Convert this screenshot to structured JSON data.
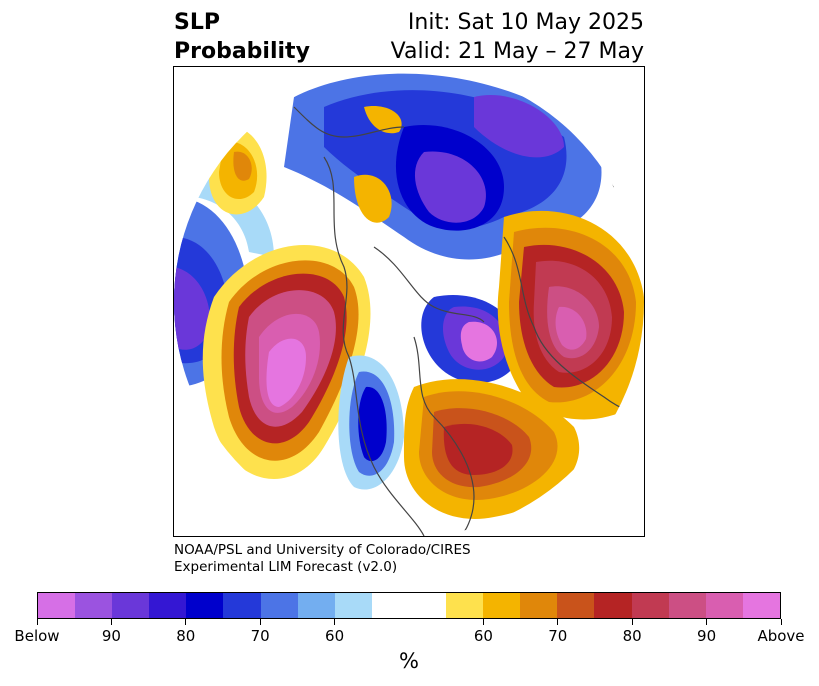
{
  "header": {
    "variable": "SLP",
    "product": "Probability",
    "init": "Init: Sat 10 May 2025",
    "valid": "Valid: 21 May – 27 May"
  },
  "credit": {
    "line1": "NOAA/PSL and University of Colorado/CIRES",
    "line2": "Experimental LIM Forecast (v2.0)"
  },
  "colorbar": {
    "colors": [
      "#d66fe6",
      "#9b53e0",
      "#6a37d9",
      "#3417d3",
      "#0000cc",
      "#2439d9",
      "#4c74e6",
      "#73aef0",
      "#a8daf8",
      "#ffffff",
      "#ffffff",
      "#fee14d",
      "#f4b400",
      "#e0870a",
      "#c9531b",
      "#b52424",
      "#c13a52",
      "#cc4f84",
      "#d95eb0",
      "#e575e0"
    ],
    "tick_labels": [
      "Below",
      "90",
      "80",
      "70",
      "60",
      "60",
      "70",
      "80",
      "90",
      "Above"
    ],
    "unit": "%"
  },
  "map": {
    "projection": "north polar stereographic",
    "field": "sea level pressure tercile probability"
  }
}
